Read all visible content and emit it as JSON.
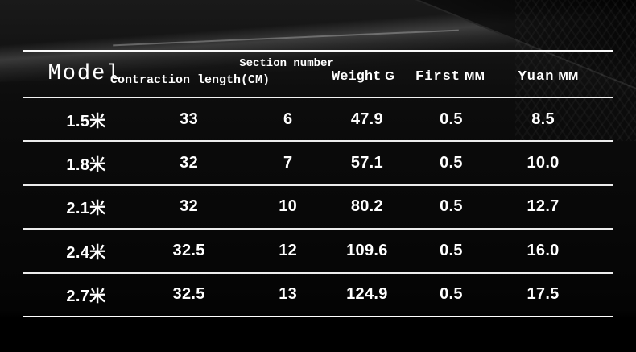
{
  "colors": {
    "background": "#000000",
    "text": "#ffffff",
    "divider": "#f2f2f2"
  },
  "chart_data": {
    "type": "table",
    "title": "",
    "columns": [
      {
        "id": "model",
        "label": "Model",
        "unit": ""
      },
      {
        "id": "contraction_length_cm",
        "label": "Contraction length(CM)",
        "unit": ""
      },
      {
        "id": "section_number",
        "label": "Section number",
        "unit": ""
      },
      {
        "id": "weight",
        "label": "Weight",
        "unit": "G"
      },
      {
        "id": "first_diameter",
        "label": "First",
        "unit": "MM"
      },
      {
        "id": "yuan_diameter",
        "label": "Yuan",
        "unit": "MM"
      }
    ],
    "rows": [
      {
        "model": "1.5米",
        "contraction": "33",
        "section": "6",
        "weight": "47.9",
        "first": "0.5",
        "yuan": "8.5"
      },
      {
        "model": "1.8米",
        "contraction": "32",
        "section": "7",
        "weight": "57.1",
        "first": "0.5",
        "yuan": "10.0"
      },
      {
        "model": "2.1米",
        "contraction": "32",
        "section": "10",
        "weight": "80.2",
        "first": "0.5",
        "yuan": "12.7"
      },
      {
        "model": "2.4米",
        "contraction": "32.5",
        "section": "12",
        "weight": "109.6",
        "first": "0.5",
        "yuan": "16.0"
      },
      {
        "model": "2.7米",
        "contraction": "32.5",
        "section": "13",
        "weight": "124.9",
        "first": "0.5",
        "yuan": "17.5"
      }
    ]
  }
}
